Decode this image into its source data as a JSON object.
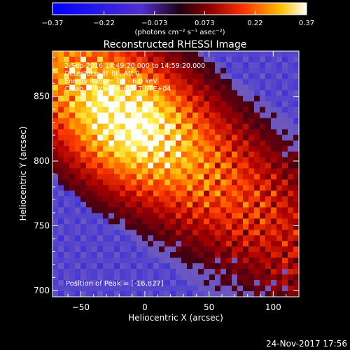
{
  "chart_data": {
    "type": "heatmap",
    "title": "Reconstructed RHESSI Image",
    "xlabel": "Heliocentric X (arcsec)",
    "ylabel": "Heliocentric Y (arcsec)",
    "xlim": [
      -72,
      120
    ],
    "ylim": [
      695,
      885
    ],
    "x_ticks": [
      -50,
      0,
      50,
      100
    ],
    "y_ticks": [
      700,
      750,
      800,
      850
    ],
    "colorbar": {
      "min": -0.37,
      "max": 0.37,
      "tick_values": [
        -0.37,
        -0.22,
        -0.073,
        0.073,
        0.22,
        0.37
      ],
      "tick_labels": [
        "-0.37",
        "-0.22",
        "-0.073",
        "0.073",
        "0.22",
        "0.37"
      ],
      "unit_label": "(photons cm⁻² s⁻¹ asec⁻²)"
    },
    "annotations": [
      "2-Sep-2016 14:49:20.000 to 14:59:20.000",
      "Detectors: 3F 8F, Att 0",
      "Energy Range: 3.0 - 6.0 keV",
      "Clean     Total counts: 7.67E+04"
    ],
    "peak_label": "Position of Peak = [-16,827]",
    "peak": {
      "x": -16,
      "y": 827
    },
    "colors": {
      "negative": "#0000ff",
      "zero_neg": "#7060c8",
      "zero_pos": "#400000",
      "mid": "#e00000",
      "high": "#ffd000",
      "max": "#ffffff"
    }
  },
  "footer": {
    "timestamp": "24-Nov-2017 17:56"
  }
}
